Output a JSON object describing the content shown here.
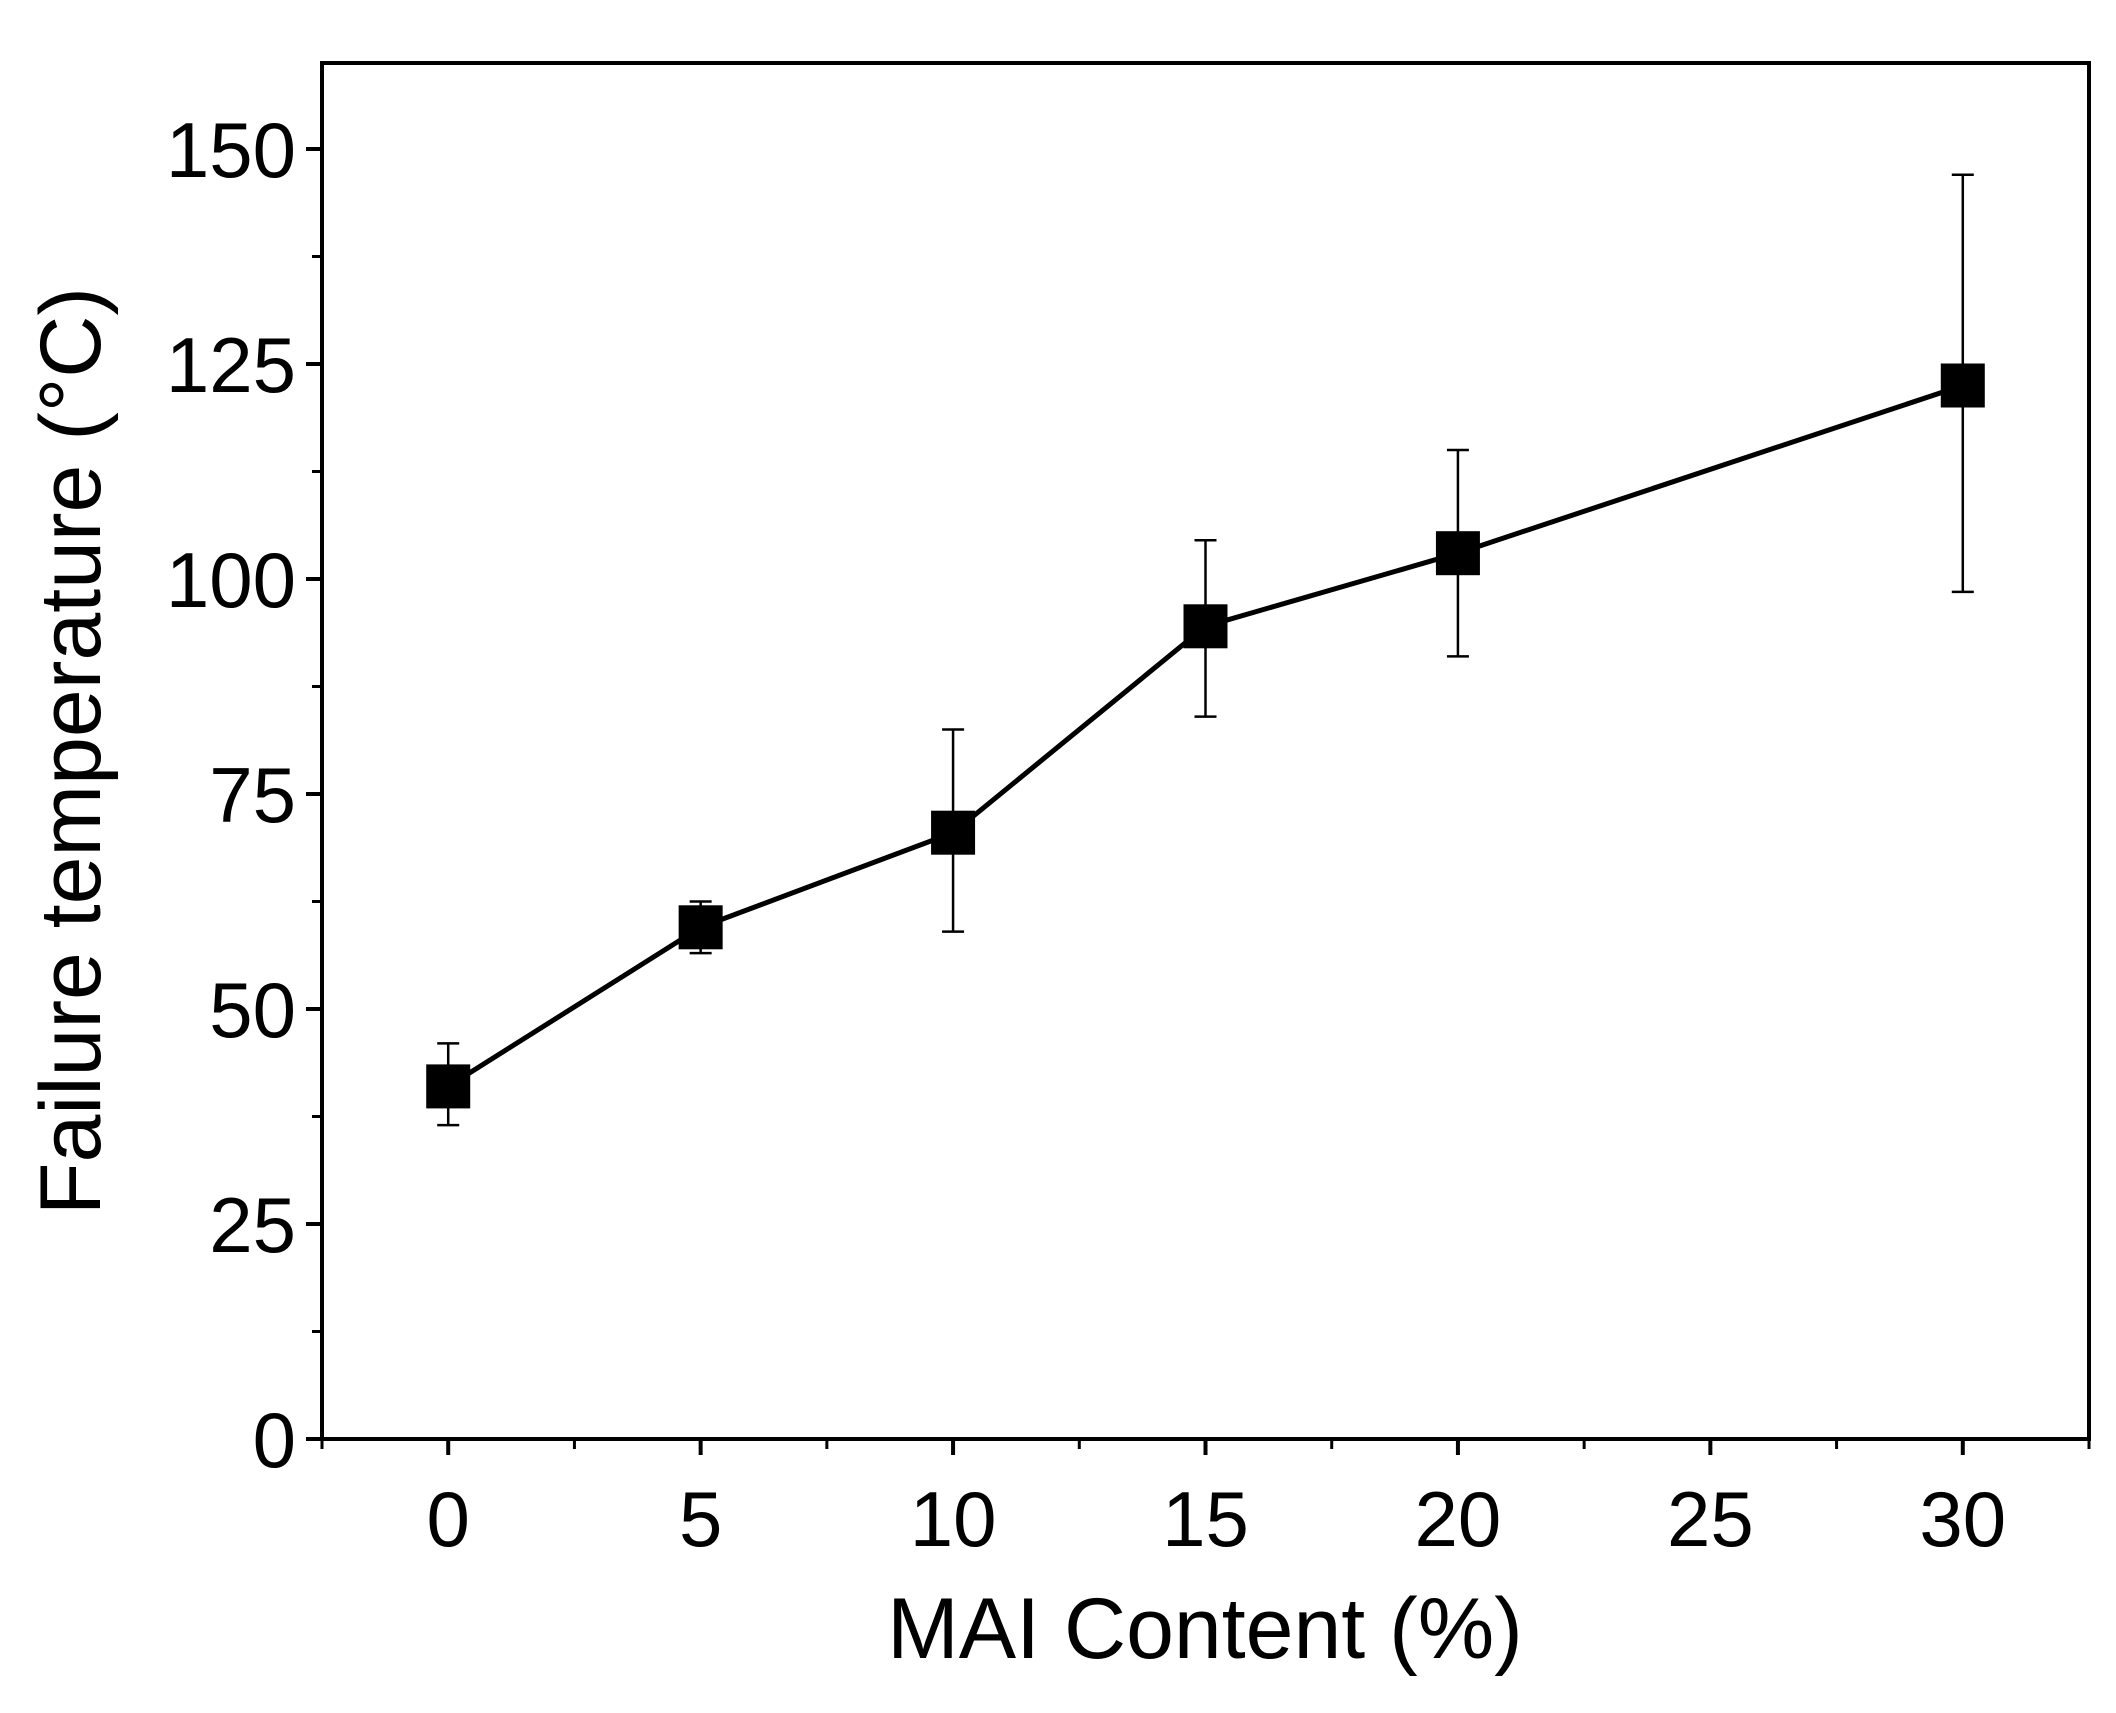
{
  "chart_data": {
    "type": "line",
    "title": "",
    "xlabel": "MAI Content (%)",
    "ylabel": "Failure temperature (°C)",
    "xlim": [
      -2.5,
      32.5
    ],
    "ylim": [
      0,
      160
    ],
    "xticks": [
      0,
      5,
      10,
      15,
      20,
      25,
      30
    ],
    "yticks": [
      0,
      25,
      50,
      75,
      100,
      125,
      150
    ],
    "xtick_labels": [
      "0",
      "5",
      "10",
      "15",
      "20",
      "25",
      "30"
    ],
    "ytick_labels": [
      "0",
      "25",
      "50",
      "75",
      "100",
      "125",
      "150"
    ],
    "grid": false,
    "legend": "none",
    "marker": "square",
    "error_bars": true,
    "color": "#000000",
    "series": [
      {
        "x": [
          0,
          5,
          10,
          15,
          20,
          30
        ],
        "y": [
          41,
          59.5,
          70.5,
          94.5,
          103,
          122.5
        ],
        "y_err_low": [
          36.5,
          56.5,
          59,
          84,
          91,
          98.5
        ],
        "y_err_high": [
          46,
          62.5,
          82.5,
          104.5,
          115,
          147
        ]
      }
    ]
  }
}
